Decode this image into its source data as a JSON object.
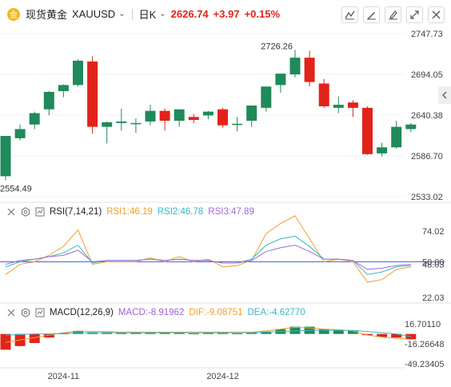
{
  "header": {
    "symbol_name": "现货黄金",
    "symbol_code": "XAUUSD",
    "timeframe": "日K",
    "last_price": "2626.74",
    "change": "+3.97",
    "change_pct": "+0.15%",
    "toolbar_icons": [
      "line-draw-icon",
      "brush-icon",
      "pen-icon",
      "expand-icon",
      "close-icon"
    ]
  },
  "colors": {
    "up": "#1f8a5a",
    "down": "#e2231a",
    "rsi1": "#f0a030",
    "rsi2": "#38b7c9",
    "rsi3": "#a26ad9",
    "ref": "#3b5bdb"
  },
  "chart_data": [
    {
      "type": "candlestick",
      "title": "现货黄金 XAUUSD 日K",
      "ylim": [
        2533.02,
        2747.73
      ],
      "y_ticks": [
        "2747.73",
        "2694.05",
        "2640.38",
        "2586.70",
        "2533.02"
      ],
      "high_label": "2726.26",
      "low_label": "2554.49",
      "x_ticks": [
        "2024-11",
        "2024-12"
      ],
      "candles": [
        {
          "o": 2560,
          "h": 2612,
          "l": 2554.49,
          "c": 2613
        },
        {
          "o": 2610,
          "h": 2628,
          "l": 2607,
          "c": 2622
        },
        {
          "o": 2628,
          "h": 2645,
          "l": 2622,
          "c": 2643
        },
        {
          "o": 2648,
          "h": 2672,
          "l": 2640,
          "c": 2671
        },
        {
          "o": 2672,
          "h": 2681,
          "l": 2664,
          "c": 2680
        },
        {
          "o": 2680,
          "h": 2714,
          "l": 2678,
          "c": 2712
        },
        {
          "o": 2711,
          "h": 2718,
          "l": 2616,
          "c": 2625
        },
        {
          "o": 2625,
          "h": 2632,
          "l": 2603,
          "c": 2631
        },
        {
          "o": 2630,
          "h": 2649,
          "l": 2620,
          "c": 2632
        },
        {
          "o": 2630,
          "h": 2636,
          "l": 2617,
          "c": 2630
        },
        {
          "o": 2632,
          "h": 2654,
          "l": 2627,
          "c": 2646
        },
        {
          "o": 2646,
          "h": 2649,
          "l": 2620,
          "c": 2633
        },
        {
          "o": 2633,
          "h": 2648,
          "l": 2625,
          "c": 2648
        },
        {
          "o": 2638,
          "h": 2642,
          "l": 2630,
          "c": 2634
        },
        {
          "o": 2640,
          "h": 2646,
          "l": 2635,
          "c": 2645
        },
        {
          "o": 2648,
          "h": 2650,
          "l": 2624,
          "c": 2627
        },
        {
          "o": 2628,
          "h": 2638,
          "l": 2619,
          "c": 2629
        },
        {
          "o": 2633,
          "h": 2652,
          "l": 2625,
          "c": 2653
        },
        {
          "o": 2650,
          "h": 2678,
          "l": 2645,
          "c": 2678
        },
        {
          "o": 2680,
          "h": 2695,
          "l": 2670,
          "c": 2695
        },
        {
          "o": 2694,
          "h": 2726.26,
          "l": 2690,
          "c": 2716
        },
        {
          "o": 2716,
          "h": 2725,
          "l": 2678,
          "c": 2684
        },
        {
          "o": 2682,
          "h": 2688,
          "l": 2650,
          "c": 2652
        },
        {
          "o": 2650,
          "h": 2665,
          "l": 2643,
          "c": 2654
        },
        {
          "o": 2657,
          "h": 2660,
          "l": 2638,
          "c": 2650
        },
        {
          "o": 2650,
          "h": 2652,
          "l": 2588,
          "c": 2589
        },
        {
          "o": 2590,
          "h": 2604,
          "l": 2586,
          "c": 2598
        },
        {
          "o": 2598,
          "h": 2633,
          "l": 2596,
          "c": 2625
        },
        {
          "o": 2622,
          "h": 2630,
          "l": 2618,
          "c": 2628
        }
      ]
    },
    {
      "type": "line",
      "name": "RSI(7,14,21)",
      "ylim": [
        22.03,
        74.02
      ],
      "y_ticks": [
        "74.02",
        "50.00",
        "48.03",
        "22.03"
      ],
      "reference": 50.0,
      "series": [
        {
          "name": "RSI1",
          "label": "RSI1:46.19",
          "values": [
            40,
            48,
            50,
            55,
            62,
            75,
            48,
            50,
            50,
            50,
            53,
            50,
            54,
            50,
            52,
            46,
            47,
            51,
            72,
            80,
            86,
            68,
            50,
            52,
            50,
            34,
            36,
            44,
            46
          ]
        },
        {
          "name": "RSI2",
          "label": "RSI2:46.78",
          "values": [
            46,
            50,
            52,
            54,
            57,
            63,
            49,
            51,
            51,
            51,
            52,
            51,
            52,
            51,
            51,
            49,
            49,
            52,
            63,
            68,
            70,
            62,
            52,
            52,
            51,
            40,
            42,
            46,
            47
          ]
        },
        {
          "name": "RSI3",
          "label": "RSI3:47.89",
          "values": [
            48,
            51,
            52,
            54,
            55,
            59,
            50,
            51,
            51,
            51,
            52,
            51,
            52,
            51,
            51,
            49,
            49,
            51,
            58,
            61,
            63,
            58,
            52,
            52,
            51,
            44,
            45,
            47,
            48
          ]
        }
      ]
    },
    {
      "type": "bar+line",
      "name": "MACD(12,26,9)",
      "ylim": [
        -49.23405,
        16.70113
      ],
      "y_ticks": [
        "16.70110",
        "-16.26648",
        "-49.23405"
      ],
      "series": [
        {
          "name": "MACD",
          "label": "MACD:-8.91962",
          "values": [
            -26,
            -20,
            -15,
            -6,
            1,
            5,
            3,
            3,
            2,
            3,
            3,
            2,
            2,
            1,
            2,
            2,
            1,
            2,
            4,
            8,
            12,
            12,
            8,
            7,
            5,
            -2,
            -5,
            -6,
            -8.9
          ]
        },
        {
          "name": "DIF",
          "label": "DIF:-9.08751",
          "values": [
            -14,
            -10,
            -6,
            -2,
            2,
            5,
            4,
            4,
            3,
            3,
            3,
            3,
            3,
            3,
            3,
            3,
            3,
            3,
            5,
            8,
            11,
            10,
            8,
            7,
            5,
            -2,
            -5,
            -7,
            -9.1
          ]
        },
        {
          "name": "DEA",
          "label": "DEA:-4.62770",
          "values": [
            -2,
            -1,
            0,
            0,
            1,
            2,
            2,
            2,
            2,
            2,
            2,
            2,
            2,
            2,
            2,
            2,
            2,
            2,
            3,
            4,
            5,
            6,
            6,
            6,
            6,
            4,
            2,
            0,
            -4.6
          ]
        }
      ]
    }
  ]
}
